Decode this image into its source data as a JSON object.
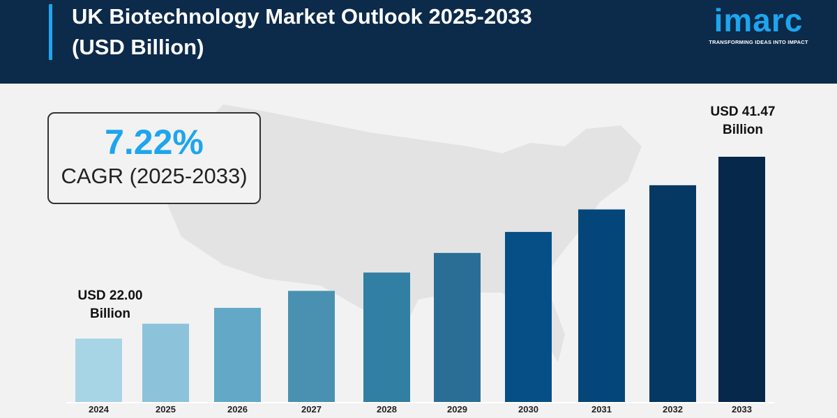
{
  "header": {
    "title_line1": "UK Biotechnology Market Outlook 2025-2033",
    "title_line2": "(USD Billion)"
  },
  "logo": {
    "word": "imarc",
    "tagline": "TRANSFORMING IDEAS INTO IMPACT"
  },
  "cagr": {
    "value": "7.22%",
    "label": "CAGR (2025-2033)"
  },
  "annotations": {
    "start_line1": "USD 22.00",
    "start_line2": "Billion",
    "end_line1": "USD 41.47",
    "end_line2": "Billion"
  },
  "colors": {
    "header": "#0c2a4a",
    "accent": "#1ea5ee",
    "bars": [
      "#a8d5e6",
      "#8cc3da",
      "#63a8c6",
      "#4a91b1",
      "#317fa2",
      "#2a6e96",
      "#064f86",
      "#044679",
      "#053862",
      "#06284a"
    ]
  },
  "chart_data": {
    "type": "bar",
    "title": "UK Biotechnology Market Outlook 2025-2033 (USD Billion)",
    "categories": [
      "2024",
      "2025",
      "2026",
      "2027",
      "2028",
      "2029",
      "2030",
      "2031",
      "2032",
      "2033"
    ],
    "values": [
      22.0,
      23.59,
      25.29,
      27.11,
      29.07,
      31.17,
      33.42,
      35.83,
      38.42,
      41.47
    ],
    "ylabel": "",
    "xlabel": "",
    "grid": false,
    "legend": "none"
  }
}
